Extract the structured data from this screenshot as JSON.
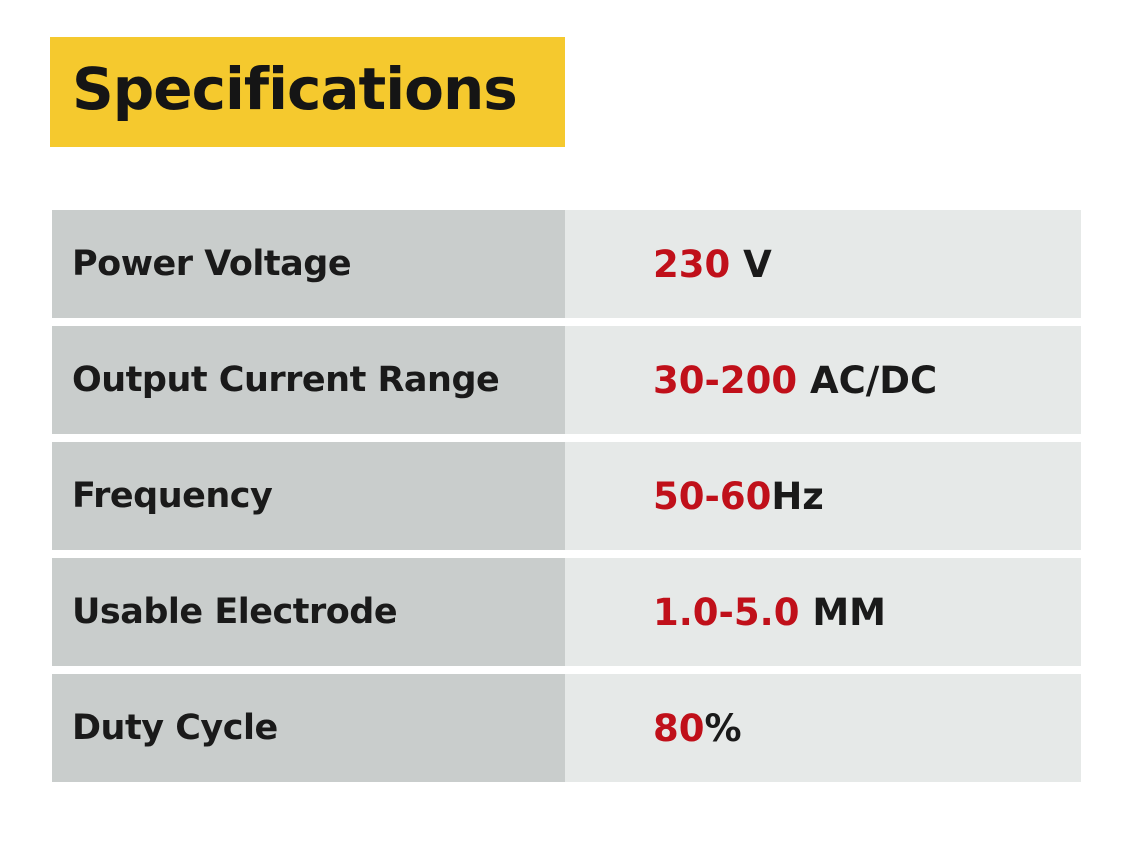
{
  "title": "Specifications",
  "colors": {
    "title_bg": "#f5c92e",
    "number": "#c0101a",
    "label_bg": "#c9cdcc",
    "value_bg": "#e6e9e8"
  },
  "specs": [
    {
      "label": "Power Voltage",
      "number": "230",
      "unit": " V"
    },
    {
      "label": "Output Current Range",
      "number": "30-200",
      "unit": " AC/DC"
    },
    {
      "label": "Frequency",
      "number": "50-60",
      "unit": "Hz"
    },
    {
      "label": "Usable Electrode",
      "number": "1.0-5.0",
      "unit": " MM"
    },
    {
      "label": "Duty Cycle",
      "number": "80",
      "unit": "%"
    }
  ]
}
